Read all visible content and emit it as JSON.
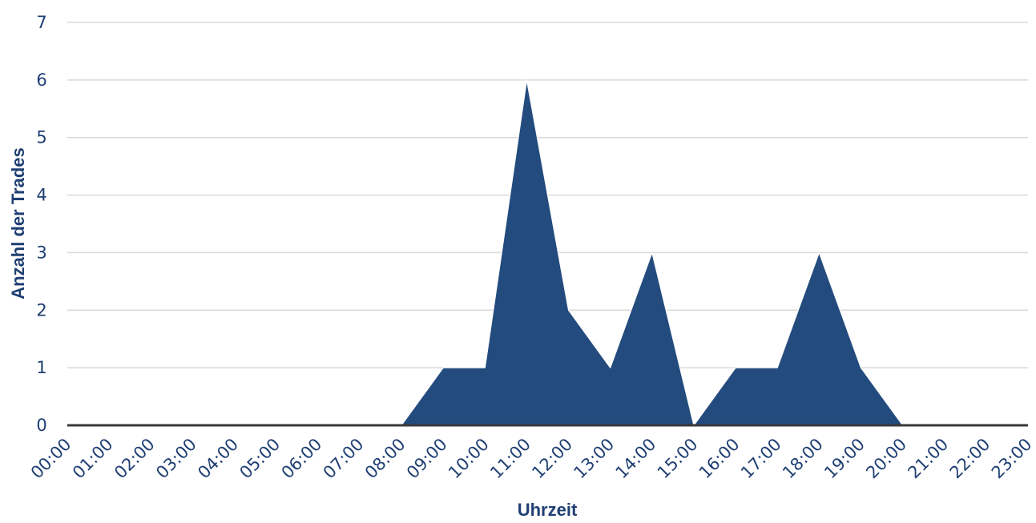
{
  "chart_data": {
    "type": "area",
    "x": [
      "00:00",
      "01:00",
      "02:00",
      "03:00",
      "04:00",
      "05:00",
      "06:00",
      "07:00",
      "08:00",
      "09:00",
      "10:00",
      "11:00",
      "12:00",
      "13:00",
      "14:00",
      "15:00",
      "16:00",
      "17:00",
      "18:00",
      "19:00",
      "20:00",
      "21:00",
      "22:00",
      "23:00"
    ],
    "series": [
      {
        "values": [
          0,
          0,
          0,
          0,
          0,
          0,
          0,
          0,
          0,
          1,
          1,
          6,
          2,
          1,
          3,
          0,
          1,
          1,
          3,
          1,
          0,
          0,
          0,
          0
        ]
      }
    ],
    "y_ticks": [
      "0",
      "1",
      "2",
      "3",
      "4",
      "5",
      "6",
      "7"
    ],
    "xlabel": "Uhrzeit",
    "ylabel": "Anzahl der Trades",
    "ylim": [
      0,
      7
    ],
    "grid": true,
    "colors": {
      "fill": "#234b7d",
      "baseline": "#3a3a3a",
      "grid": "#d9d9d9",
      "text": "#1f3f73"
    }
  }
}
